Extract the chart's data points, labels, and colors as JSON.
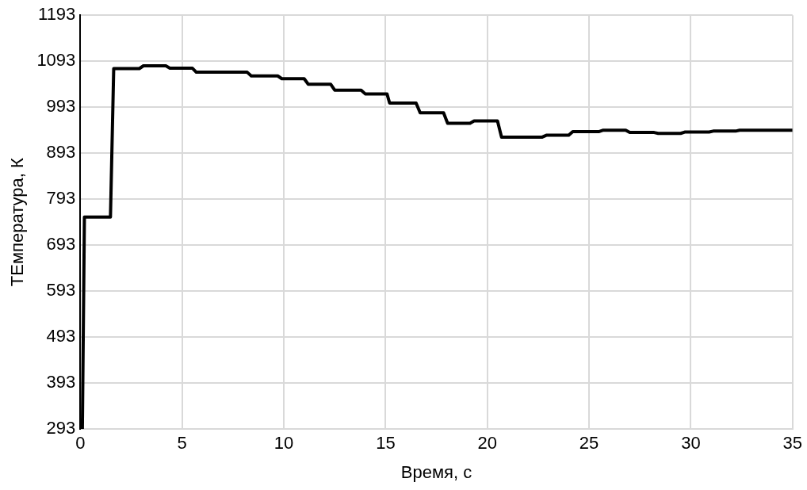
{
  "chart_data": {
    "type": "line",
    "xlabel": "Время, с",
    "ylabel": "ТЕмпература, К",
    "xlim": [
      0,
      35
    ],
    "xticks": [
      0,
      5,
      10,
      15,
      20,
      25,
      30,
      35
    ],
    "ylim": [
      293,
      1193
    ],
    "yticks": [
      293,
      393,
      493,
      593,
      693,
      793,
      893,
      993,
      1093,
      1193
    ],
    "grid": true,
    "legend": false,
    "marker": "none",
    "line_style": "solid",
    "series": [
      {
        "color": "#000000",
        "x": [
          0.1,
          0.2,
          1.48,
          1.64,
          2.9,
          3.1,
          4.2,
          4.4,
          5.5,
          5.7,
          8.2,
          8.4,
          9.7,
          9.9,
          11.0,
          11.2,
          12.3,
          12.5,
          13.8,
          14.0,
          15.07,
          15.2,
          16.5,
          16.7,
          17.85,
          18.05,
          19.15,
          19.35,
          20.5,
          20.7,
          22.7,
          22.9,
          24.0,
          24.2,
          25.5,
          25.7,
          26.8,
          27.0,
          28.2,
          28.4,
          29.5,
          29.7,
          30.9,
          31.1,
          32.2,
          32.4,
          35
        ],
        "values": [
          293,
          754,
          754,
          1077,
          1077,
          1083,
          1083,
          1078,
          1078,
          1069,
          1069,
          1061,
          1061,
          1055,
          1055,
          1043,
          1043,
          1030,
          1030,
          1022,
          1022,
          1002,
          1002,
          981,
          981,
          958,
          958,
          963,
          963,
          928,
          928,
          932,
          932,
          940,
          940,
          943,
          943,
          938,
          938,
          936,
          936,
          939,
          939,
          941,
          941,
          943,
          943
        ]
      }
    ]
  }
}
